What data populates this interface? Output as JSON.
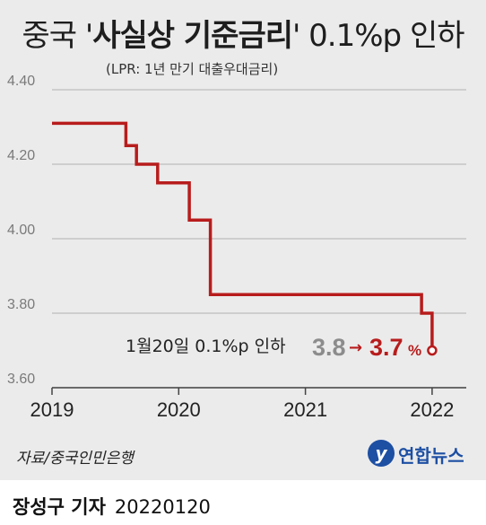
{
  "title": {
    "prefix": "중국 '",
    "bold": "사실상 기준금리",
    "suffix": "' 0.1%p 인하"
  },
  "subtitle": "(LPR: 1년 만기 대출우대금리)",
  "chart_data": {
    "type": "line",
    "step": true,
    "ylim": [
      3.6,
      4.4
    ],
    "yticks": [
      "4.40",
      "4.20",
      "4.00",
      "3.80",
      "3.60"
    ],
    "xticks": [
      "2019",
      "2020",
      "2021",
      "2022"
    ],
    "grid": "horizontal",
    "series": [
      {
        "color": "#b81c1c",
        "points": [
          [
            "2019-01",
            4.31
          ],
          [
            "2019-08",
            4.31
          ],
          [
            "2019-08",
            4.25
          ],
          [
            "2019-09",
            4.25
          ],
          [
            "2019-09",
            4.2
          ],
          [
            "2019-11",
            4.2
          ],
          [
            "2019-11",
            4.15
          ],
          [
            "2020-02",
            4.15
          ],
          [
            "2020-02",
            4.05
          ],
          [
            "2020-04",
            4.05
          ],
          [
            "2020-04",
            3.85
          ],
          [
            "2021-12",
            3.85
          ],
          [
            "2021-12",
            3.8
          ],
          [
            "2022-01",
            3.8
          ],
          [
            "2022-01",
            3.7
          ]
        ]
      }
    ],
    "annotation": {
      "label": "1월20일 0.1%p 인하",
      "from": "3.8",
      "arrow": "→",
      "to": "3.7",
      "unit": "%"
    }
  },
  "source": "자료/중국인민은행",
  "logo": {
    "badge": "y",
    "text": "연합뉴스"
  },
  "footer": {
    "reporter": "장성구 기자",
    "date": "20220120"
  }
}
